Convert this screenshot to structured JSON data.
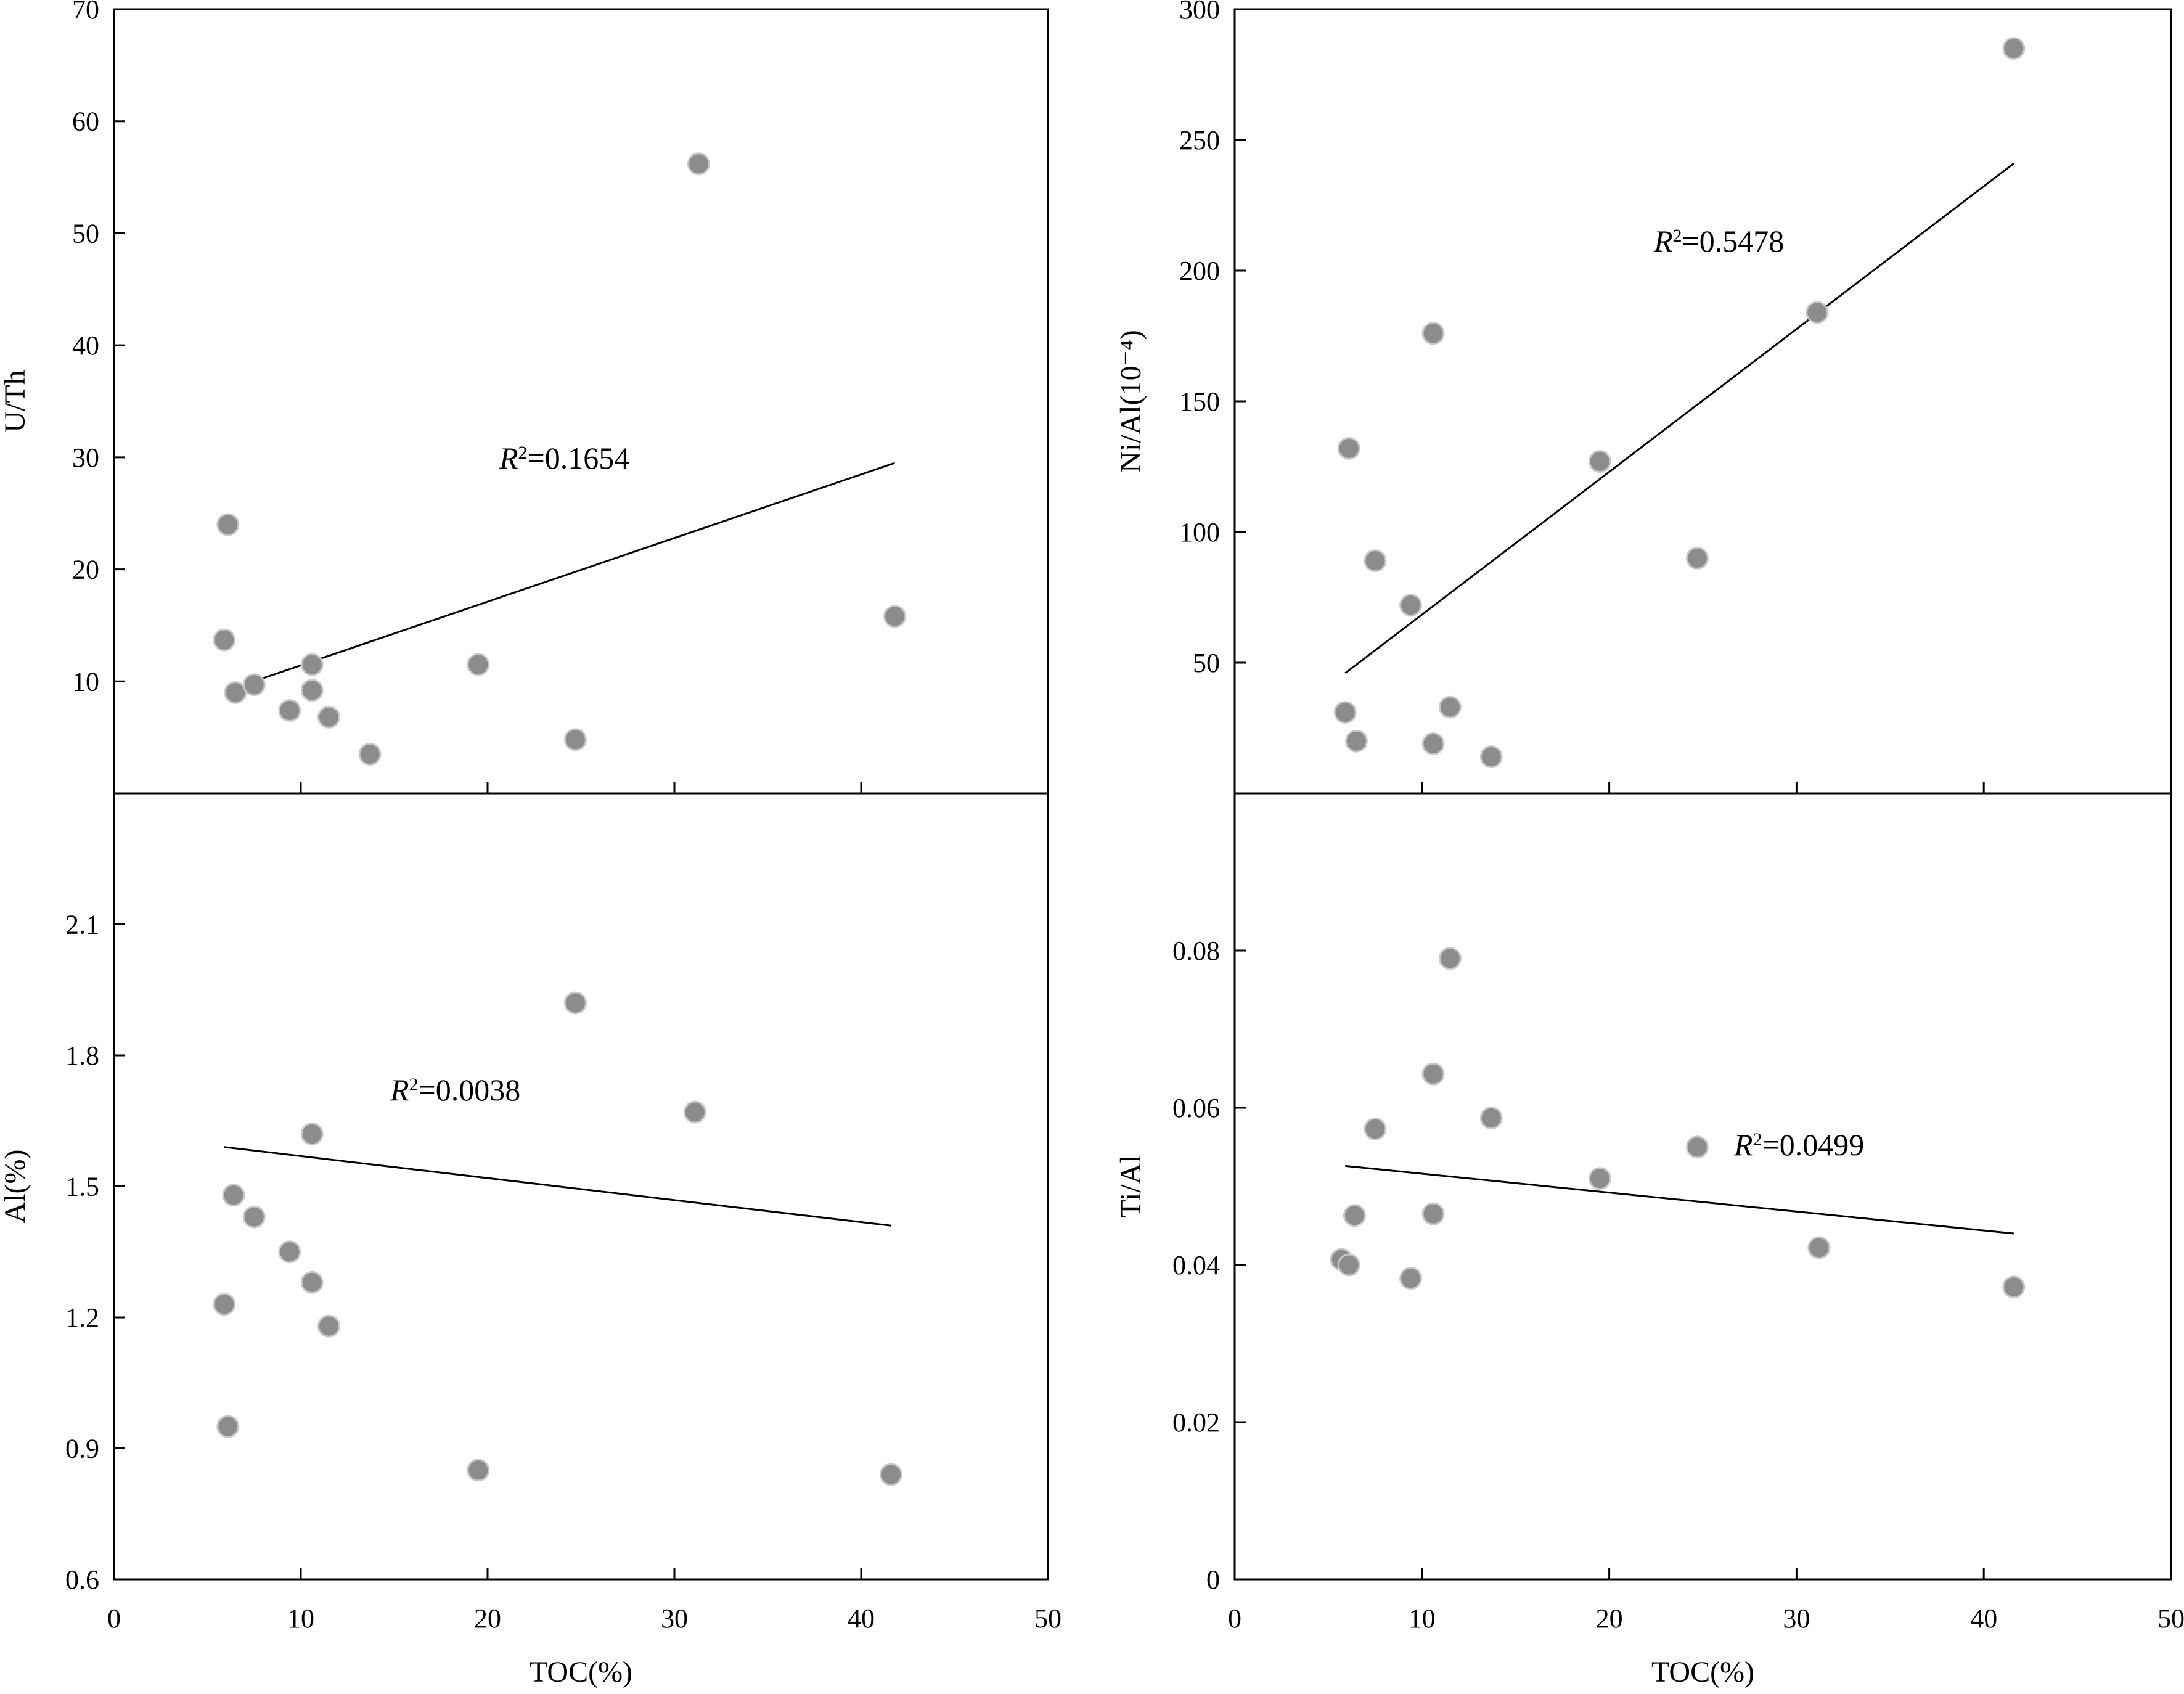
{
  "chart_data": [
    {
      "type": "scatter",
      "xlim": [
        0,
        50
      ],
      "xticks": [
        "0",
        "10",
        "20",
        "30",
        "40",
        "50"
      ],
      "xlabel": "",
      "ylabel": "U/Th",
      "ylim": [
        0,
        70
      ],
      "yticks": [
        "10",
        "20",
        "30",
        "40",
        "50",
        "60",
        "70"
      ],
      "x": [
        5.9,
        6.1,
        6.5,
        7.5,
        9.4,
        10.6,
        10.6,
        11.5,
        13.7,
        19.5,
        24.7,
        31.3,
        41.8
      ],
      "y": [
        13.7,
        24.0,
        9.0,
        9.7,
        7.4,
        9.2,
        11.5,
        6.8,
        3.5,
        11.5,
        4.8,
        56.2,
        15.8
      ],
      "trendline": {
        "x": [
          5.9,
          41.8
        ],
        "y": [
          9.1,
          29.5
        ]
      },
      "r2_prefix": "R",
      "r2_value": "=0.1654"
    },
    {
      "type": "scatter",
      "xlim": [
        0,
        50
      ],
      "xticks": [
        "0",
        "10",
        "20",
        "30",
        "40",
        "50"
      ],
      "xlabel": "",
      "ylabel": "Ni/Al(10⁻⁴)",
      "ylim": [
        0,
        300
      ],
      "yticks": [
        "50",
        "100",
        "150",
        "200",
        "250",
        "300"
      ],
      "x": [
        5.9,
        6.1,
        6.5,
        7.5,
        9.4,
        10.6,
        10.6,
        11.5,
        13.7,
        19.5,
        24.7,
        31.1,
        41.6
      ],
      "y": [
        31,
        132,
        20,
        89,
        72,
        176,
        19,
        33,
        14,
        127,
        90,
        184,
        285
      ],
      "trendline": {
        "x": [
          5.9,
          41.6
        ],
        "y": [
          46,
          241
        ]
      },
      "r2_prefix": "R",
      "r2_value": "=0.5478"
    },
    {
      "type": "scatter",
      "xlim": [
        0,
        50
      ],
      "xticks": [
        "0",
        "10",
        "20",
        "30",
        "40",
        "50"
      ],
      "xlabel": "TOC(%)",
      "ylabel": "Al(%)",
      "ylim": [
        0.6,
        2.4
      ],
      "yticks": [
        "0.6",
        "0.9",
        "1.2",
        "1.5",
        "1.8",
        "2.1"
      ],
      "x": [
        5.9,
        6.1,
        6.4,
        7.5,
        9.4,
        10.6,
        10.6,
        11.5,
        19.5,
        24.7,
        31.1,
        41.6
      ],
      "y": [
        1.23,
        0.95,
        1.48,
        1.43,
        1.35,
        1.62,
        1.28,
        1.18,
        0.85,
        1.92,
        1.67,
        0.84
      ],
      "trendline": {
        "x": [
          5.9,
          41.6
        ],
        "y": [
          1.59,
          1.41
        ]
      },
      "r2_prefix": "R",
      "r2_value": "=0.0038"
    },
    {
      "type": "scatter",
      "xlim": [
        0,
        50
      ],
      "xticks": [
        "0",
        "10",
        "20",
        "30",
        "40",
        "50"
      ],
      "xlabel": "TOC(%)",
      "ylabel": "Ti/Al",
      "ylim": [
        0,
        0.1
      ],
      "yticks": [
        "0",
        "0.02",
        "0.04",
        "0.06",
        "0.08"
      ],
      "x": [
        5.7,
        6.1,
        6.4,
        7.5,
        9.4,
        10.6,
        10.6,
        11.5,
        13.7,
        19.5,
        24.7,
        31.2,
        41.6
      ],
      "y": [
        0.0407,
        0.04,
        0.0463,
        0.0573,
        0.0383,
        0.0643,
        0.0465,
        0.079,
        0.0587,
        0.051,
        0.055,
        0.0422,
        0.0372
      ],
      "trendline": {
        "x": [
          5.9,
          41.6
        ],
        "y": [
          0.0526,
          0.044
        ]
      },
      "r2_prefix": "R",
      "r2_value": "=0.0499"
    }
  ]
}
